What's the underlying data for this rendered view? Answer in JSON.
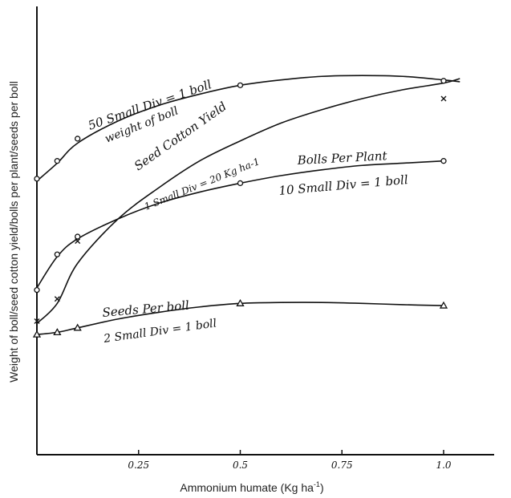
{
  "chart_data": {
    "type": "line",
    "xlabel": "Ammonium humate (Kg ha",
    "xlabel_sup": "-1",
    "xlabel_end": ")",
    "ylabel": "Weight of boll/seed cotton yield/bolls per plant/seeds per boll",
    "xlim": [
      0,
      1.1
    ],
    "ylim": [
      0,
      10
    ],
    "x_ticks": [
      {
        "value": 0.25,
        "label": "0.25"
      },
      {
        "value": 0.5,
        "label": "0.5"
      },
      {
        "value": 0.75,
        "label": "0.75"
      },
      {
        "value": 1.0,
        "label": "1.0"
      }
    ],
    "series": [
      {
        "key": "weight",
        "marker": "circle",
        "points": [
          [
            0,
            6.2
          ],
          [
            0.05,
            6.6
          ],
          [
            0.1,
            7.1
          ],
          [
            0.5,
            8.3
          ],
          [
            1.0,
            8.4
          ]
        ],
        "curve": [
          [
            0,
            6.15
          ],
          [
            0.05,
            6.55
          ],
          [
            0.1,
            7.0
          ],
          [
            0.2,
            7.5
          ],
          [
            0.3,
            7.85
          ],
          [
            0.4,
            8.1
          ],
          [
            0.5,
            8.3
          ],
          [
            0.6,
            8.42
          ],
          [
            0.7,
            8.5
          ],
          [
            0.8,
            8.52
          ],
          [
            0.9,
            8.5
          ],
          [
            1.0,
            8.42
          ],
          [
            1.04,
            8.38
          ]
        ],
        "labels": [
          "50 Small Div = 1 boll",
          "weight of boll"
        ]
      },
      {
        "key": "seed_cotton",
        "marker": "x",
        "points": [
          [
            0,
            3.0
          ],
          [
            0.05,
            3.5
          ],
          [
            0.1,
            4.8
          ],
          [
            1.0,
            8.0
          ]
        ],
        "curve": [
          [
            0,
            2.95
          ],
          [
            0.05,
            3.4
          ],
          [
            0.1,
            4.3
          ],
          [
            0.2,
            5.3
          ],
          [
            0.3,
            6.0
          ],
          [
            0.4,
            6.6
          ],
          [
            0.5,
            7.05
          ],
          [
            0.6,
            7.45
          ],
          [
            0.7,
            7.75
          ],
          [
            0.8,
            8.0
          ],
          [
            0.9,
            8.2
          ],
          [
            1.0,
            8.35
          ],
          [
            1.04,
            8.45
          ]
        ],
        "labels": [
          "Seed Cotton Yield",
          "1 Small Div = 20 Kg ha-1"
        ]
      },
      {
        "key": "bolls_per_plant",
        "marker": "circle",
        "points": [
          [
            0,
            3.7
          ],
          [
            0.05,
            4.5
          ],
          [
            0.1,
            4.9
          ],
          [
            0.5,
            6.1
          ],
          [
            1.0,
            6.6
          ]
        ],
        "curve": [
          [
            0,
            3.75
          ],
          [
            0.05,
            4.45
          ],
          [
            0.1,
            4.85
          ],
          [
            0.2,
            5.3
          ],
          [
            0.3,
            5.65
          ],
          [
            0.4,
            5.9
          ],
          [
            0.5,
            6.1
          ],
          [
            0.6,
            6.27
          ],
          [
            0.7,
            6.4
          ],
          [
            0.8,
            6.5
          ],
          [
            0.9,
            6.55
          ],
          [
            1.0,
            6.6
          ]
        ],
        "labels": [
          "Bolls Per Plant",
          "10 Small Div = 1 boll"
        ]
      },
      {
        "key": "seeds_per_boll",
        "marker": "triangle",
        "points": [
          [
            0,
            2.7
          ],
          [
            0.05,
            2.75
          ],
          [
            0.1,
            2.85
          ],
          [
            0.5,
            3.4
          ],
          [
            1.0,
            3.35
          ]
        ],
        "curve": [
          [
            0,
            2.7
          ],
          [
            0.05,
            2.75
          ],
          [
            0.1,
            2.85
          ],
          [
            0.2,
            3.05
          ],
          [
            0.3,
            3.2
          ],
          [
            0.4,
            3.32
          ],
          [
            0.5,
            3.4
          ],
          [
            0.6,
            3.42
          ],
          [
            0.7,
            3.42
          ],
          [
            0.8,
            3.4
          ],
          [
            0.9,
            3.37
          ],
          [
            1.0,
            3.35
          ]
        ],
        "labels": [
          "Seeds Per boll",
          "2 Small Div = 1 boll"
        ]
      }
    ]
  }
}
